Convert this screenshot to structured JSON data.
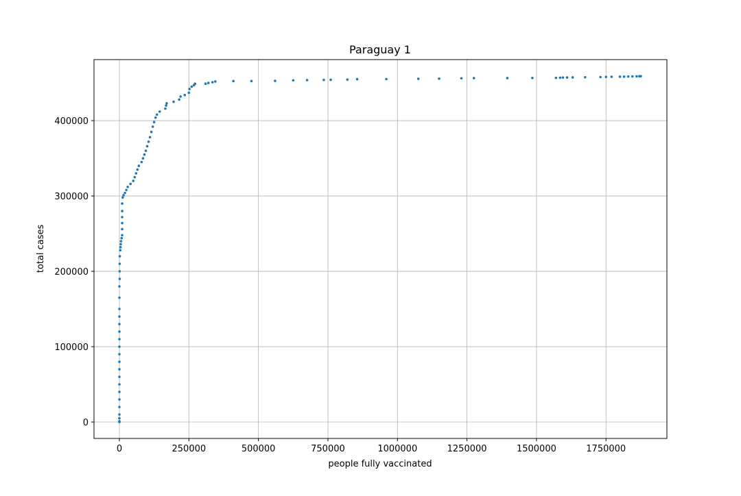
{
  "chart_data": {
    "type": "scatter",
    "title": "Paraguay 1",
    "x_label": "people fully vaccinated",
    "y_label": "total cases",
    "color": "#1f77b4",
    "grid": true,
    "xlim": [
      -91300,
      1969000
    ],
    "ylim": [
      -21800,
      481000
    ],
    "xticks": [
      0,
      250000,
      500000,
      750000,
      1000000,
      1250000,
      1500000,
      1750000
    ],
    "yticks": [
      0,
      100000,
      200000,
      300000,
      400000
    ],
    "x": [
      0,
      0,
      0,
      0,
      0,
      0,
      0,
      0,
      0,
      0,
      0,
      0,
      0,
      0,
      0,
      0,
      0,
      0,
      0,
      0,
      1000,
      1000,
      1000,
      1500,
      3000,
      4000,
      5000,
      6000,
      8000,
      10000,
      10000,
      10000,
      10000,
      10000,
      10000,
      12000,
      15000,
      20000,
      25000,
      30000,
      40000,
      50000,
      55000,
      60000,
      65000,
      70000,
      80000,
      85000,
      90000,
      95000,
      100000,
      105000,
      110000,
      115000,
      120000,
      125000,
      130000,
      135000,
      145000,
      165000,
      168000,
      170000,
      195000,
      215000,
      220000,
      235000,
      250000,
      252000,
      260000,
      268000,
      272000,
      310000,
      320000,
      335000,
      345000,
      410000,
      475000,
      560000,
      625000,
      675000,
      735000,
      760000,
      820000,
      855000,
      960000,
      1075000,
      1150000,
      1230000,
      1275000,
      1395000,
      1485000,
      1570000,
      1585000,
      1595000,
      1610000,
      1630000,
      1675000,
      1730000,
      1750000,
      1770000,
      1800000,
      1815000,
      1830000,
      1845000,
      1860000,
      1870000,
      1875000
    ],
    "y": [
      0,
      1000,
      5000,
      10000,
      20000,
      30000,
      40000,
      50000,
      60000,
      70000,
      80000,
      90000,
      100000,
      110000,
      120000,
      130000,
      140000,
      150000,
      165000,
      180000,
      190000,
      200000,
      210000,
      220000,
      228000,
      232000,
      236000,
      240000,
      244000,
      248000,
      256000,
      264000,
      272000,
      280000,
      290000,
      298000,
      301000,
      304000,
      308000,
      312000,
      316000,
      320000,
      325000,
      330000,
      335000,
      340000,
      345000,
      350000,
      355000,
      360000,
      366000,
      372000,
      378000,
      385000,
      392000,
      398000,
      404000,
      408000,
      412000,
      416000,
      420000,
      423000,
      425000,
      428000,
      432000,
      434000,
      437000,
      442000,
      445000,
      447000,
      449000,
      449000,
      450000,
      451000,
      452000,
      452500,
      452500,
      452800,
      453500,
      453800,
      454000,
      454200,
      454500,
      455000,
      455200,
      455500,
      455700,
      456200,
      456400,
      456500,
      456600,
      456800,
      457000,
      457200,
      457300,
      457400,
      457500,
      457800,
      458000,
      458200,
      458300,
      458400,
      458600,
      458700,
      458800,
      458900,
      459000
    ]
  }
}
